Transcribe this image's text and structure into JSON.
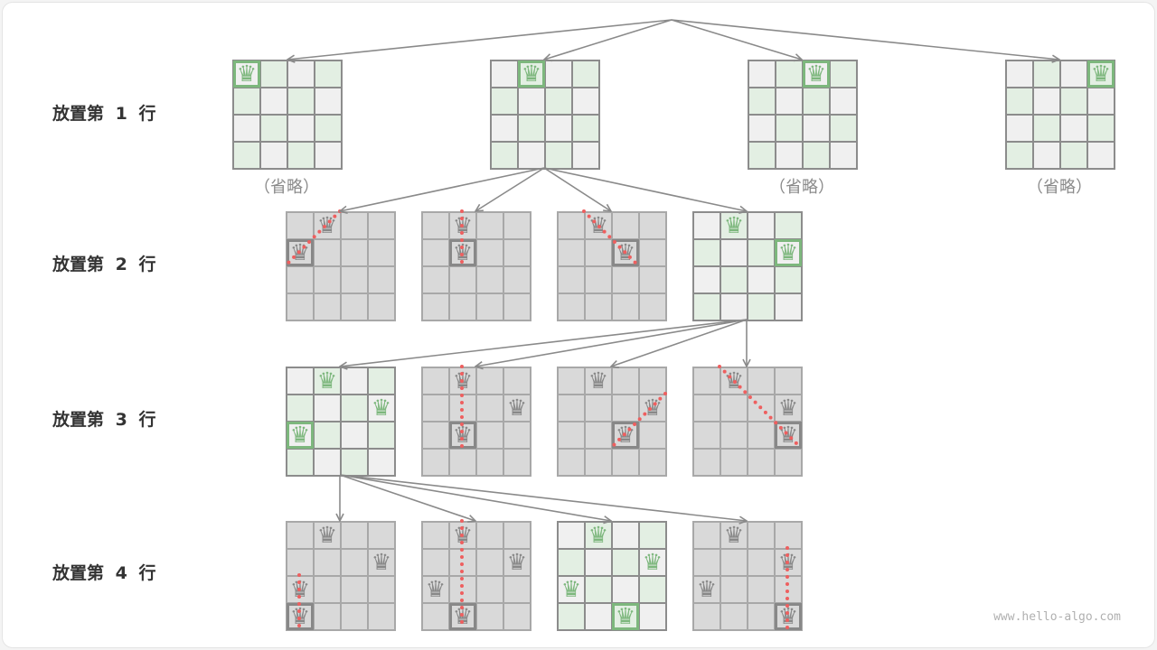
{
  "row_labels": [
    "放置第 1 行",
    "放置第 2 行",
    "放置第 3 行",
    "放置第 4 行"
  ],
  "omitted_label": "（省略）",
  "watermark": "www.hello-algo.com",
  "icons": {
    "queen": "queen-icon",
    "arrow": "arrow-icon",
    "conflict": "conflict-dotted-line"
  },
  "colors": {
    "valid_light": "#f0f0f0",
    "valid_green": "#e3efe3",
    "invalid_cell": "#d9d9d9",
    "queen_valid": "#7db77d",
    "queen_invalid": "#888888",
    "conflict": "#ee5f5f",
    "arrow": "#8a8a8a"
  },
  "levels": [
    [
      {
        "queens": [
          [
            0,
            0
          ]
        ],
        "valid": true,
        "omitted": true
      },
      {
        "queens": [
          [
            0,
            1
          ]
        ],
        "valid": true,
        "omitted": false,
        "expanded": true
      },
      {
        "queens": [
          [
            0,
            2
          ]
        ],
        "valid": true,
        "omitted": true
      },
      {
        "queens": [
          [
            0,
            3
          ]
        ],
        "valid": true,
        "omitted": true
      }
    ],
    [
      {
        "queens": [
          [
            0,
            1
          ],
          [
            1,
            0
          ]
        ],
        "valid": false
      },
      {
        "queens": [
          [
            0,
            1
          ],
          [
            1,
            1
          ]
        ],
        "valid": false
      },
      {
        "queens": [
          [
            0,
            1
          ],
          [
            1,
            2
          ]
        ],
        "valid": false
      },
      {
        "queens": [
          [
            0,
            1
          ],
          [
            1,
            3
          ]
        ],
        "valid": true,
        "expanded": true
      }
    ],
    [
      {
        "queens": [
          [
            0,
            1
          ],
          [
            1,
            3
          ],
          [
            2,
            0
          ]
        ],
        "valid": true,
        "expanded": true
      },
      {
        "queens": [
          [
            0,
            1
          ],
          [
            1,
            3
          ],
          [
            2,
            1
          ]
        ],
        "valid": false
      },
      {
        "queens": [
          [
            0,
            1
          ],
          [
            1,
            3
          ],
          [
            2,
            2
          ]
        ],
        "valid": false
      },
      {
        "queens": [
          [
            0,
            1
          ],
          [
            1,
            3
          ],
          [
            2,
            3
          ]
        ],
        "valid": false
      }
    ],
    [
      {
        "queens": [
          [
            0,
            1
          ],
          [
            1,
            3
          ],
          [
            2,
            0
          ],
          [
            3,
            0
          ]
        ],
        "valid": false
      },
      {
        "queens": [
          [
            0,
            1
          ],
          [
            1,
            3
          ],
          [
            2,
            0
          ],
          [
            3,
            1
          ]
        ],
        "valid": false
      },
      {
        "queens": [
          [
            0,
            1
          ],
          [
            1,
            3
          ],
          [
            2,
            0
          ],
          [
            3,
            2
          ]
        ],
        "valid": true
      },
      {
        "queens": [
          [
            0,
            1
          ],
          [
            1,
            3
          ],
          [
            2,
            0
          ],
          [
            3,
            3
          ]
        ],
        "valid": false
      }
    ]
  ]
}
